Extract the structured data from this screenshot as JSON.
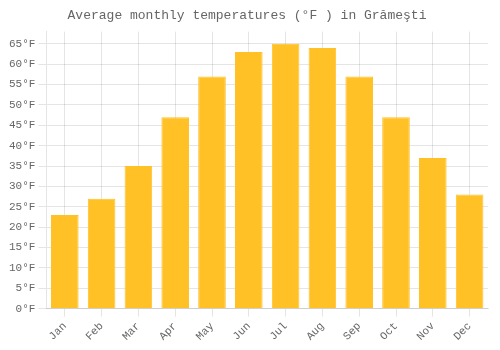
{
  "chart_data": {
    "type": "bar",
    "title": "Average monthly temperatures (°F ) in Grămeşti",
    "categories": [
      "Jan",
      "Feb",
      "Mar",
      "Apr",
      "May",
      "Jun",
      "Jul",
      "Aug",
      "Sep",
      "Oct",
      "Nov",
      "Dec"
    ],
    "values": [
      23,
      27,
      35,
      47,
      57,
      63,
      65,
      64,
      57,
      47,
      37,
      28
    ],
    "color": "#FFC125",
    "ylim": [
      0,
      68
    ],
    "yticks": [
      {
        "value": 0,
        "label": "0°F"
      },
      {
        "value": 5,
        "label": "5°F"
      },
      {
        "value": 10,
        "label": "10°F"
      },
      {
        "value": 15,
        "label": "15°F"
      },
      {
        "value": 20,
        "label": "20°F"
      },
      {
        "value": 25,
        "label": "25°F"
      },
      {
        "value": 30,
        "label": "30°F"
      },
      {
        "value": 35,
        "label": "35°F"
      },
      {
        "value": 40,
        "label": "40°F"
      },
      {
        "value": 45,
        "label": "45°F"
      },
      {
        "value": 50,
        "label": "50°F"
      },
      {
        "value": 55,
        "label": "55°F"
      },
      {
        "value": 60,
        "label": "60°F"
      },
      {
        "value": 65,
        "label": "65°F"
      }
    ],
    "grid": true
  }
}
